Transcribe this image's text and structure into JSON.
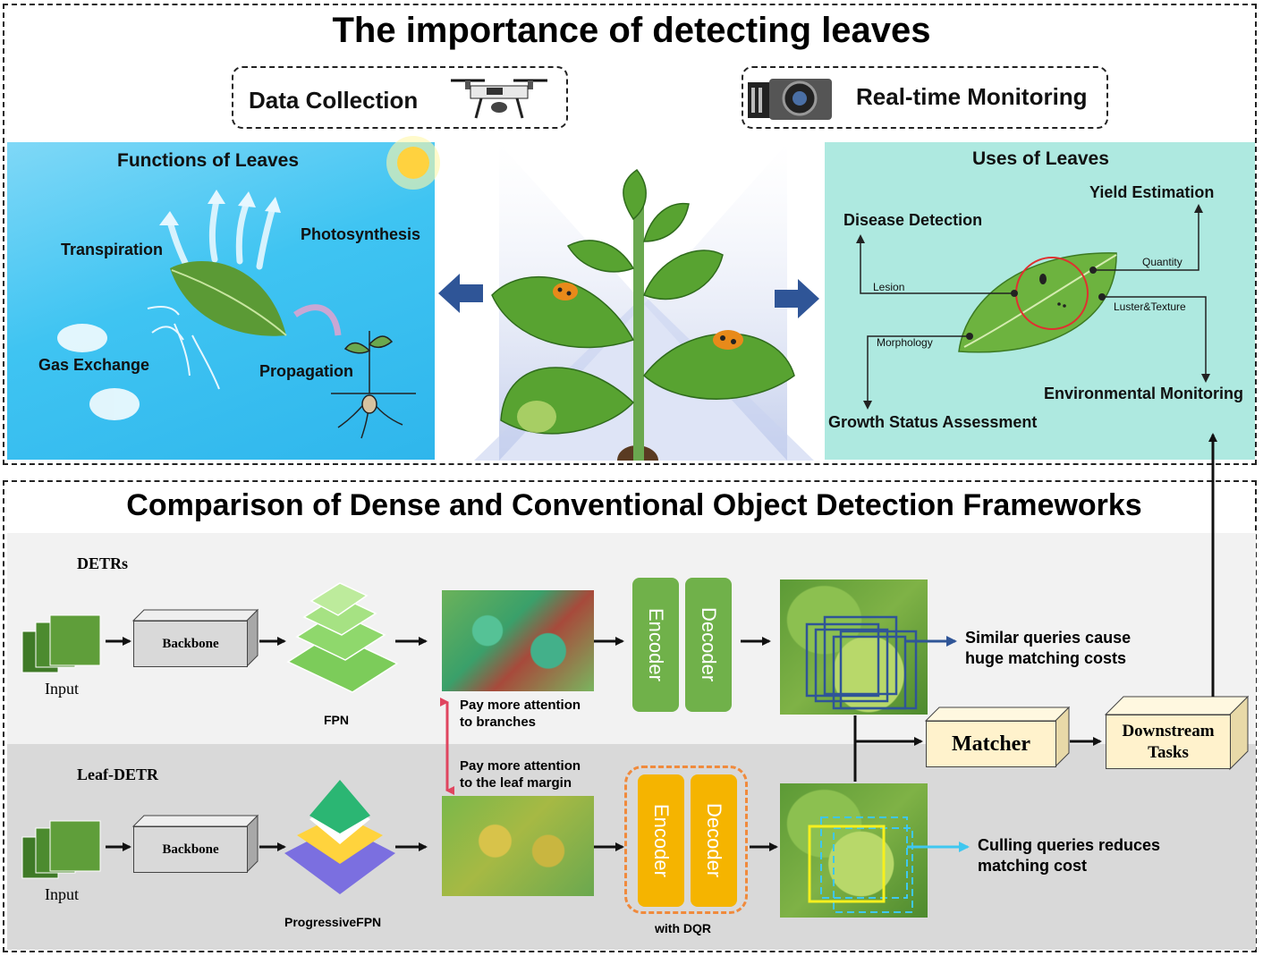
{
  "top": {
    "title": "The importance of detecting leaves",
    "data_collection": "Data Collection",
    "realtime_monitoring": "Real-time Monitoring",
    "functions": {
      "title": "Functions of Leaves",
      "transpiration": "Transpiration",
      "photosynthesis": "Photosynthesis",
      "gas_exchange": "Gas Exchange",
      "propagation": "Propagation"
    },
    "uses": {
      "title": "Uses of Leaves",
      "yield_estimation": "Yield Estimation",
      "disease_detection": "Disease Detection",
      "quantity": "Quantity",
      "lesion": "Lesion",
      "luster_texture": "Luster&Texture",
      "morphology": "Morphology",
      "environmental_monitoring": "Environmental Monitoring",
      "growth_status": "Growth Status Assessment"
    }
  },
  "bottom": {
    "title": "Comparison of Dense and Conventional Object Detection Frameworks",
    "detrs": {
      "name": "DETRs",
      "input": "Input",
      "backbone": "Backbone",
      "fpn": "FPN",
      "attention": [
        "Pay more attention",
        "to branches"
      ],
      "encoder": "Encoder",
      "decoder": "Decoder",
      "note": [
        "Similar queries cause",
        "huge matching costs"
      ]
    },
    "leafdetr": {
      "name": "Leaf-DETR",
      "input": "Input",
      "backbone": "Backbone",
      "fpn": "ProgressiveFPN",
      "attention": [
        "Pay more attention",
        "to the leaf margin"
      ],
      "encoder": "Encoder",
      "decoder": "Decoder",
      "with_dqr": "with DQR",
      "note": [
        "Culling queries reduces",
        "matching cost"
      ]
    },
    "matcher": "Matcher",
    "downstream": [
      "Downstream",
      "Tasks"
    ]
  },
  "colors": {
    "functions_bg": "#3fc4f2",
    "uses_bg": "#aee9e0",
    "row_top_bg": "#f2f2f2",
    "row_bottom_bg": "#d9d9d9",
    "encoder_green": "#70b14a",
    "encoder_orange": "#f5b400",
    "arrow_blue": "#2f5597",
    "cyan": "#3fc7f0",
    "red_link": "#e0455f"
  },
  "icons": [
    "drone-icon",
    "camera-icon",
    "sun-icon",
    "cloud-icon",
    "seedling-icon",
    "plant-icon",
    "ladybug-icon",
    "leaf-icon",
    "insect-icon"
  ]
}
